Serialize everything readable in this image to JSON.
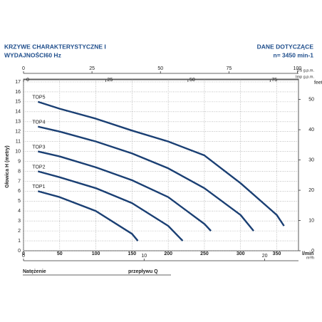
{
  "chart_data": {
    "type": "line",
    "title": [
      "KRZYWE CHARAKTERYSTYCZNE I",
      "WYDAJNOŚCI60 Hz"
    ],
    "subtitle": [
      "DANE DOTYCZĄCE",
      "n= 3450 min-1"
    ],
    "ylabel": "Głowica H (metry)",
    "y2label": "feet",
    "xlabel": "l/min",
    "footer": [
      "Natężenie",
      "przepływu Q"
    ],
    "xlim": [
      0,
      380
    ],
    "xticks": [
      0,
      50,
      100,
      150,
      200,
      250,
      300,
      350
    ],
    "ylim": [
      0,
      17
    ],
    "yticks": [
      0,
      1,
      2,
      3,
      4,
      5,
      6,
      7,
      8,
      9,
      10,
      11,
      12,
      13,
      14,
      15,
      16,
      17
    ],
    "y2lim": [
      0,
      55.8
    ],
    "y2ticks": [
      0,
      10,
      20,
      30,
      40,
      50
    ],
    "top_axes": [
      {
        "label": "US g.p.m.",
        "xlim": [
          0,
          100.4
        ],
        "xticks": [
          0,
          25,
          50,
          75,
          100
        ]
      },
      {
        "label": "Imp g.p.m.",
        "xlim": [
          0,
          83.6
        ],
        "xticks": [
          0,
          25,
          50,
          75
        ]
      }
    ],
    "bottom_axis2": {
      "label": "m³/h",
      "xlim": [
        0,
        22.8
      ],
      "xticks": [
        0,
        10,
        20
      ]
    },
    "grid": true,
    "series": [
      {
        "name": "TOP1",
        "color": "#1a3f73",
        "x": [
          20,
          50,
          100,
          150,
          158
        ],
        "values": [
          6,
          5.4,
          4.0,
          1.7,
          1
        ]
      },
      {
        "name": "TOP2",
        "color": "#1a3f73",
        "x": [
          20,
          50,
          100,
          150,
          200,
          220
        ],
        "values": [
          8,
          7.4,
          6.3,
          4.8,
          2.5,
          1
        ]
      },
      {
        "name": "TOP3",
        "color": "#1a3f73",
        "x": [
          20,
          50,
          100,
          150,
          200,
          250,
          259
        ],
        "values": [
          10,
          9.5,
          8.4,
          7.1,
          5.4,
          2.7,
          2
        ]
      },
      {
        "name": "TOP4",
        "color": "#1a3f73",
        "x": [
          20,
          50,
          100,
          150,
          200,
          250,
          300,
          318
        ],
        "values": [
          12.5,
          12.0,
          11.0,
          9.8,
          8.3,
          6.3,
          3.6,
          2
        ]
      },
      {
        "name": "TOP5",
        "color": "#1a3f73",
        "x": [
          20,
          50,
          100,
          150,
          200,
          250,
          300,
          350,
          360
        ],
        "values": [
          15,
          14.3,
          13.3,
          12.1,
          11.0,
          9.6,
          6.8,
          3.6,
          2.5
        ]
      }
    ]
  }
}
